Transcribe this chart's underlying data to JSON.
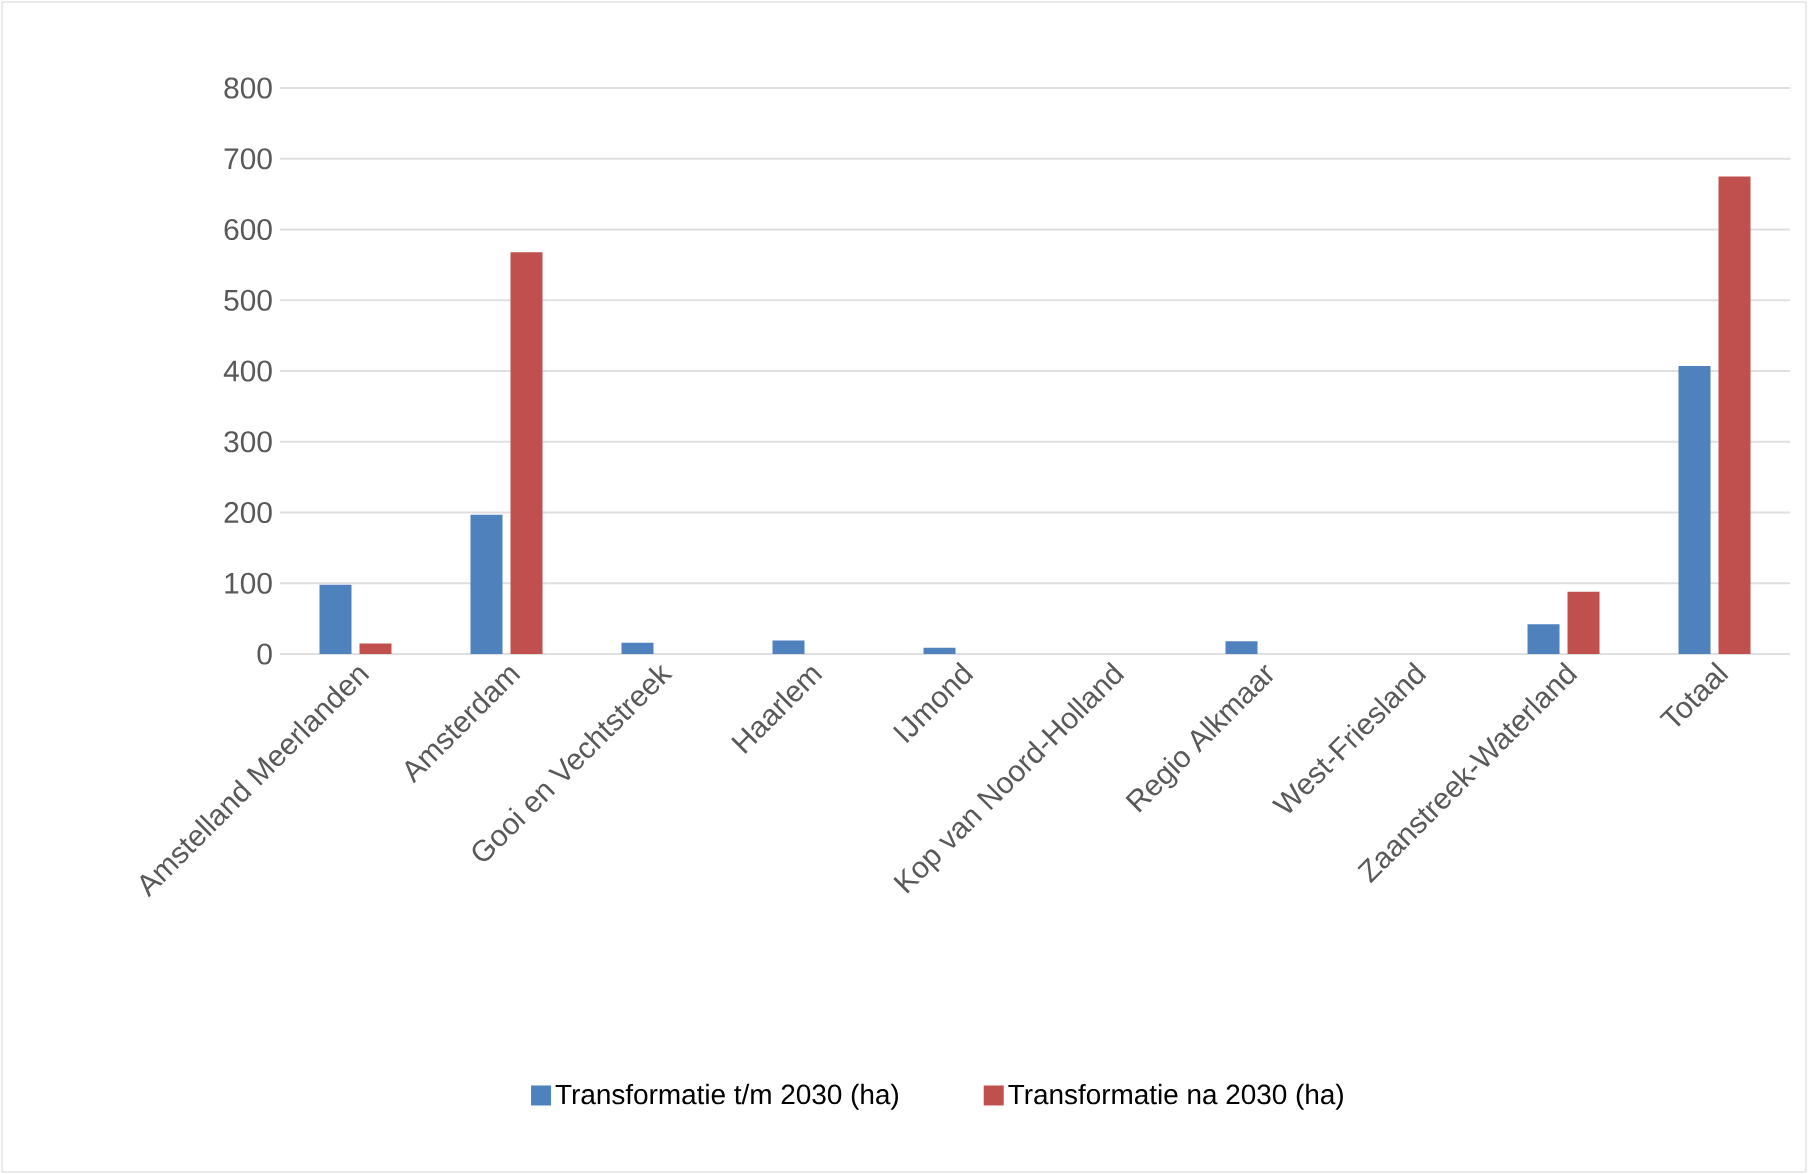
{
  "chart_data": {
    "type": "bar",
    "categories": [
      "Amstelland Meerlanden",
      "Amsterdam",
      "Gooi en Vechtstreek",
      "Haarlem",
      "IJmond",
      "Kop van Noord-Holland",
      "Regio Alkmaar",
      "West-Friesland",
      "Zaanstreek-Waterland",
      "Totaal"
    ],
    "series": [
      {
        "name": "Transformatie t/m 2030 (ha)",
        "color": "#4f81bd",
        "values": [
          98,
          197,
          16,
          19,
          9,
          0,
          18,
          0,
          42,
          407
        ]
      },
      {
        "name": "Transformatie na 2030 (ha)",
        "color": "#c0504d",
        "values": [
          15,
          568,
          0,
          0,
          0,
          0,
          0,
          0,
          88,
          675
        ]
      }
    ],
    "ylim": [
      0,
      800
    ],
    "yticks": [
      0,
      100,
      200,
      300,
      400,
      500,
      600,
      700,
      800
    ],
    "grid": "y",
    "legend": "bottom"
  }
}
